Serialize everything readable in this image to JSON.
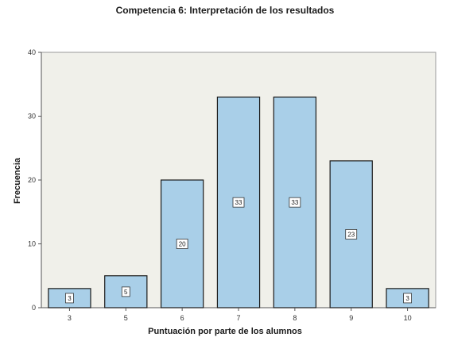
{
  "chart_data": {
    "type": "bar",
    "title": "Competencia 6: Interpretación de los resultados",
    "xlabel": "Puntuación por parte de los alumnos",
    "ylabel": "Frecuencia",
    "categories": [
      "3",
      "5",
      "6",
      "7",
      "8",
      "9",
      "10"
    ],
    "values": [
      3,
      5,
      20,
      33,
      33,
      23,
      3
    ],
    "data_labels": [
      "3",
      "5",
      "20",
      "33",
      "33",
      "23",
      "3"
    ],
    "ylim": [
      0,
      40
    ],
    "yticks": [
      "0",
      "10",
      "20",
      "30",
      "40"
    ],
    "grid": false,
    "colors": {
      "bar_fill": "#a9cfe8",
      "bar_stroke": "#1a1a1a",
      "plot_bg": "#f0f0ea"
    }
  }
}
